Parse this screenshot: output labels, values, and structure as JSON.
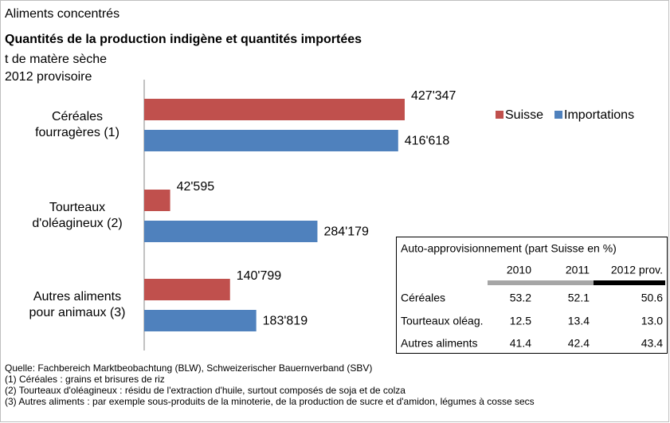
{
  "chart_data": {
    "type": "bar",
    "orientation": "horizontal",
    "supertitle": "Aliments concentrés",
    "title": "Quantités de la production indigène et quantités importées",
    "subtitle": [
      "t de matère sèche",
      "2012 provisoire"
    ],
    "categories": [
      [
        "Céréales",
        "fourragères (1)"
      ],
      [
        "Tourteaux",
        "d'oléagineux (2)"
      ],
      [
        "Autres aliments",
        "pour animaux (3)"
      ]
    ],
    "series": [
      {
        "name": "Suisse",
        "color": "#c0504d",
        "values": [
          427347,
          42595,
          140799
        ],
        "value_labels": [
          "427'347",
          "42'595",
          "140'799"
        ]
      },
      {
        "name": "Importations",
        "color": "#4f81bd",
        "values": [
          416618,
          284179,
          183819
        ],
        "value_labels": [
          "416'618",
          "284'179",
          "183'819"
        ]
      }
    ],
    "legend": "top-right",
    "table": {
      "title": "Auto-approvisionnement (part Suisse en %)",
      "columns": [
        "2010",
        "2011",
        "2012 prov."
      ],
      "rows": [
        [
          "Céréales",
          "53.2",
          "52.1",
          "50.6"
        ],
        [
          "Tourteaux oléag.",
          "12.5",
          "13.4",
          "13.0"
        ],
        [
          "Autres aliments",
          "41.4",
          "42.4",
          "43.4"
        ]
      ]
    },
    "notes": [
      "Quelle: Fachbereich Marktbeobachtung (BLW), Schweizerischer Bauernverband (SBV)",
      "(1) Céréales : grains et brisures de riz",
      "(2) Tourteaux d'oléagineux : résidu de l'extraction d'huile, surtout composés de soja et de colza",
      "(3) Autres aliments : par exemple sous-produits de la minoterie, de la production de sucre et d'amidon, légumes à cosse secs"
    ]
  }
}
